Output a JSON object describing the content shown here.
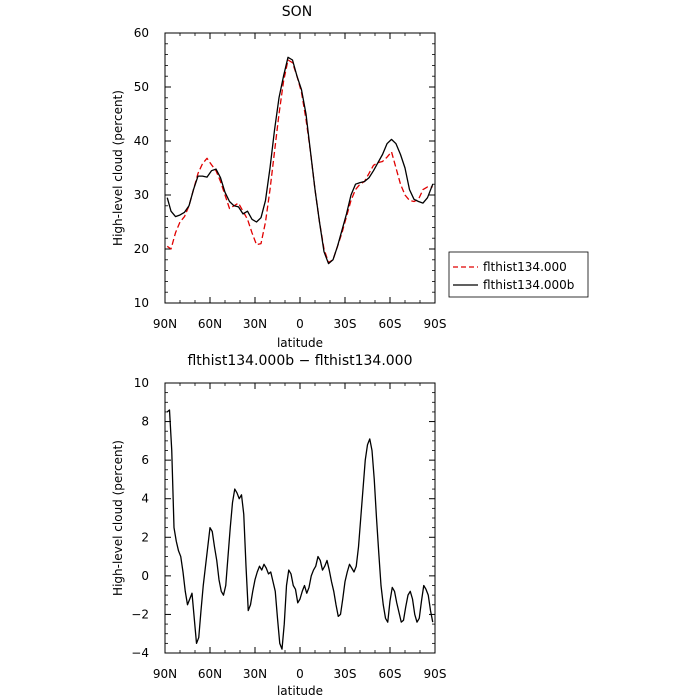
{
  "chart_data": [
    {
      "type": "line",
      "title": "SON",
      "xlabel": "latitude",
      "ylabel": "High-level cloud (percent)",
      "xlim": [
        90,
        -90
      ],
      "ylim": [
        10,
        60
      ],
      "x_ticks": [
        90,
        60,
        30,
        0,
        -30,
        -60,
        -90
      ],
      "x_tick_labels": [
        "90N",
        "60N",
        "30N",
        "0",
        "30S",
        "60S",
        "90S"
      ],
      "y_ticks": [
        10,
        20,
        30,
        40,
        50,
        60
      ],
      "y_tick_labels": [
        "10",
        "20",
        "30",
        "40",
        "50",
        "60"
      ],
      "grid": false,
      "legend_position": "right",
      "series": [
        {
          "name": "flthist134.000",
          "color": "#e00000",
          "dash": "dashed",
          "x": [
            88.5,
            86,
            83,
            80,
            77,
            74,
            71,
            68,
            65,
            62,
            59,
            56,
            53,
            50,
            47,
            44,
            41,
            38,
            35,
            32,
            29,
            26,
            23,
            20,
            17,
            14,
            11,
            8,
            5,
            2,
            -1,
            -4,
            -7,
            -10,
            -13,
            -16,
            -19,
            -22,
            -25,
            -28,
            -31,
            -34,
            -37,
            -40,
            -43,
            -46,
            -49,
            -52,
            -55,
            -58,
            -61,
            -64,
            -67,
            -70,
            -73,
            -76,
            -79,
            -82,
            -85,
            -88.5
          ],
          "y": [
            20.5,
            20,
            23,
            25,
            26,
            28,
            31,
            34,
            35.8,
            36.8,
            35.6,
            34.5,
            32.5,
            30,
            27.5,
            28,
            28.5,
            27,
            25.5,
            23,
            20.8,
            21,
            25,
            31,
            38,
            45,
            51,
            55,
            54.5,
            52,
            49,
            44,
            38,
            31,
            25,
            20,
            17.5,
            18,
            20.5,
            23,
            26,
            29,
            31,
            32,
            32.5,
            34,
            35.5,
            36,
            36.2,
            37,
            38,
            35,
            32,
            30,
            29,
            28.8,
            29.2,
            31,
            31.5,
            31.5
          ]
        },
        {
          "name": "flthist134.000b",
          "color": "#000000",
          "dash": "solid",
          "x": [
            88.5,
            86,
            83,
            80,
            77,
            74,
            71,
            68,
            65,
            62,
            59,
            56,
            53,
            50,
            47,
            44,
            41,
            38,
            35,
            32,
            29,
            26,
            23,
            20,
            17,
            14,
            11,
            8,
            5,
            2,
            -1,
            -4,
            -7,
            -10,
            -13,
            -16,
            -19,
            -22,
            -25,
            -28,
            -31,
            -34,
            -37,
            -40,
            -43,
            -46,
            -49,
            -52,
            -55,
            -58,
            -61,
            -64,
            -67,
            -70,
            -73,
            -76,
            -79,
            -82,
            -85,
            -88.5
          ],
          "y": [
            29.5,
            27,
            26,
            26.3,
            26.8,
            28,
            31,
            33.5,
            33.5,
            33.3,
            34.5,
            34.8,
            33.2,
            30.5,
            28.8,
            28,
            27.8,
            26.5,
            27,
            25.5,
            25,
            25.8,
            29,
            35,
            42,
            48,
            52,
            55.5,
            55,
            52,
            49.5,
            45,
            38,
            31,
            25,
            19.5,
            17.3,
            18,
            20.5,
            23.5,
            26.5,
            30,
            32,
            32.3,
            32.5,
            33.2,
            34.5,
            36,
            37.5,
            39.5,
            40.3,
            39.5,
            37.5,
            35,
            31,
            29.2,
            28.8,
            28.5,
            29.5,
            32
          ]
        }
      ]
    },
    {
      "type": "line",
      "title": "flthist134.000b − flthist134.000",
      "xlabel": "latitude",
      "ylabel": "High-level cloud (percent)",
      "xlim": [
        90,
        -90
      ],
      "ylim": [
        -4,
        10
      ],
      "x_ticks": [
        90,
        60,
        30,
        0,
        -30,
        -60,
        -90
      ],
      "x_tick_labels": [
        "90N",
        "60N",
        "30N",
        "0",
        "30S",
        "60S",
        "90S"
      ],
      "y_ticks": [
        -4,
        -2,
        0,
        2,
        4,
        6,
        8,
        10
      ],
      "y_tick_labels": [
        "−4",
        "−2",
        "0",
        "2",
        "4",
        "6",
        "8",
        "10"
      ],
      "grid": false,
      "series": [
        {
          "color": "#000000",
          "dash": "solid",
          "x": [
            88.5,
            87,
            85.5,
            84,
            82.5,
            81,
            79.5,
            78,
            76.5,
            75,
            73.5,
            72,
            70.5,
            69,
            67.5,
            66,
            64.5,
            63,
            61.5,
            60,
            58.5,
            57,
            55.5,
            54,
            52.5,
            51,
            49.5,
            48,
            46.5,
            45,
            43.5,
            42,
            40.5,
            39,
            37.5,
            36,
            34.5,
            33,
            31.5,
            30,
            28.5,
            27,
            25.5,
            24,
            22.5,
            21,
            19.5,
            18,
            16.5,
            15,
            13.5,
            12,
            10.5,
            9,
            7.5,
            6,
            4.5,
            3,
            1.5,
            0,
            -1.5,
            -3,
            -4.5,
            -6,
            -7.5,
            -9,
            -10.5,
            -12,
            -13.5,
            -15,
            -16.5,
            -18,
            -19.5,
            -21,
            -22.5,
            -24,
            -25.5,
            -27,
            -28.5,
            -30,
            -31.5,
            -33,
            -34.5,
            -36,
            -37.5,
            -39,
            -40.5,
            -42,
            -43.5,
            -45,
            -46.5,
            -48,
            -49.5,
            -51,
            -52.5,
            -54,
            -55.5,
            -57,
            -58.5,
            -60,
            -61.5,
            -63,
            -64.5,
            -66,
            -67.5,
            -69,
            -70.5,
            -72,
            -73.5,
            -75,
            -76.5,
            -78,
            -79.5,
            -81,
            -82.5,
            -84,
            -85.5,
            -87,
            -88.5
          ],
          "y": [
            8.5,
            8.6,
            6.5,
            2.5,
            1.8,
            1.3,
            1,
            0.2,
            -0.8,
            -1.5,
            -1.2,
            -0.9,
            -2.2,
            -3.5,
            -3.2,
            -1.8,
            -0.5,
            0.5,
            1.5,
            2.5,
            2.3,
            1.5,
            0.8,
            -0.2,
            -0.8,
            -1,
            -0.5,
            1,
            2.5,
            3.8,
            4.5,
            4.3,
            4,
            4.2,
            3.2,
            0.5,
            -1.8,
            -1.5,
            -0.8,
            -0.2,
            0.2,
            0.5,
            0.3,
            0.6,
            0.4,
            0.1,
            0.2,
            -0.3,
            -0.8,
            -2.2,
            -3.5,
            -3.8,
            -2.5,
            -0.5,
            0.3,
            0.1,
            -0.5,
            -0.7,
            -1.4,
            -1.2,
            -0.8,
            -0.5,
            -0.9,
            -0.6,
            0,
            0.3,
            0.5,
            1,
            0.8,
            0.3,
            0.5,
            0.8,
            0.3,
            -0.3,
            -0.8,
            -1.5,
            -2.1,
            -2,
            -1.2,
            -0.3,
            0.2,
            0.6,
            0.4,
            0.2,
            0.5,
            1.5,
            3,
            4.5,
            6,
            6.8,
            7.1,
            6.5,
            5,
            3,
            1.2,
            -0.5,
            -1.5,
            -2.2,
            -2.4,
            -1.3,
            -0.6,
            -0.8,
            -1.4,
            -1.9,
            -2.4,
            -2.3,
            -1.6,
            -1,
            -0.8,
            -1.2,
            -2,
            -2.4,
            -2.2,
            -1.3,
            -0.5,
            -0.7,
            -1,
            -1.8,
            -2.4
          ]
        }
      ]
    }
  ],
  "legend": {
    "entries": [
      {
        "label": "flthist134.000",
        "color": "#e00000",
        "dash": "dashed"
      },
      {
        "label": "flthist134.000b",
        "color": "#000000",
        "dash": "solid"
      }
    ]
  }
}
